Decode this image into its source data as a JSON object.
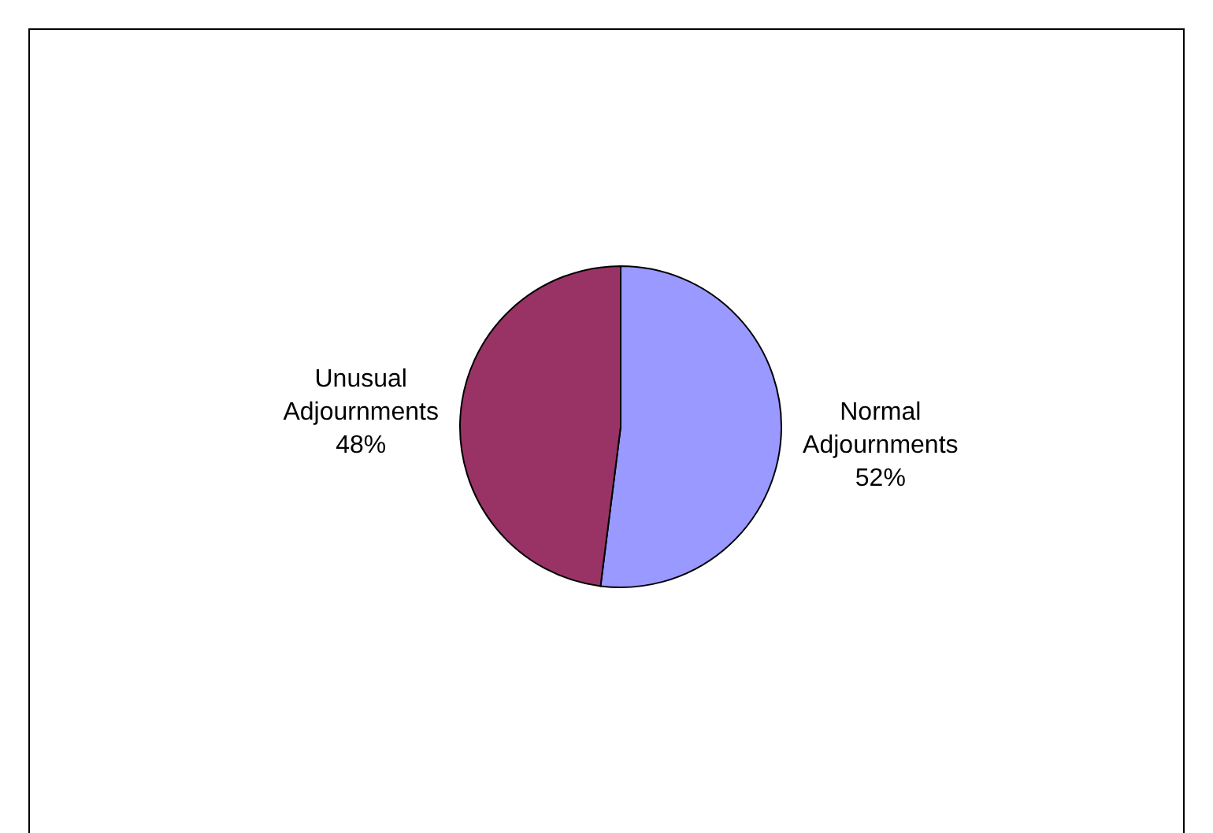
{
  "chart_data": {
    "type": "pie",
    "categories": [
      "Normal Adjournments",
      "Unusual Adjournments"
    ],
    "values": [
      52,
      48
    ],
    "value_labels": [
      "52%",
      "48%"
    ],
    "colors": [
      "#9999ff",
      "#993366"
    ],
    "legend": false
  }
}
